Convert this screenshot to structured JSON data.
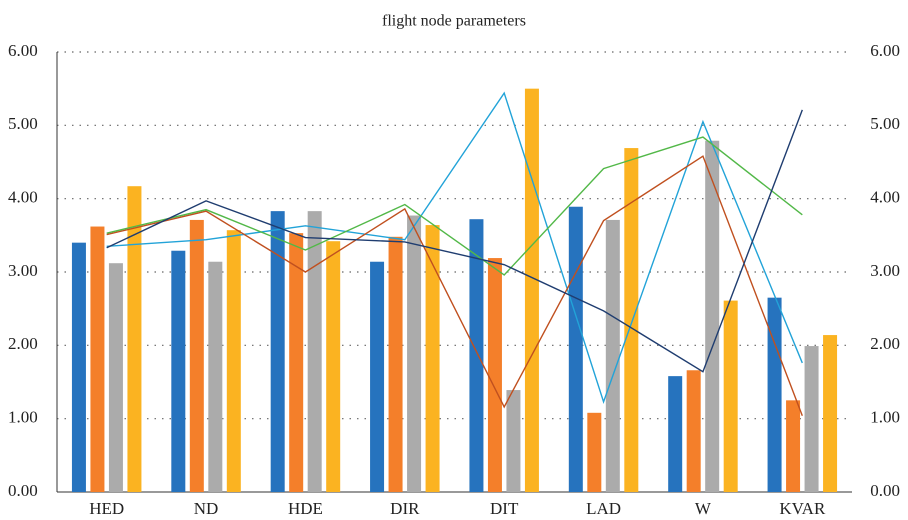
{
  "chart_data": {
    "type": "bar-line",
    "title": "flight node parameters",
    "categories": [
      "HED",
      "ND",
      "HDE",
      "DIR",
      "DIT",
      "LAD",
      "W",
      "KVAR"
    ],
    "series": [
      {
        "type": "bar",
        "color": "#2673be",
        "values": [
          3.4,
          3.29,
          3.83,
          3.14,
          3.72,
          3.89,
          1.58,
          2.65
        ]
      },
      {
        "type": "bar",
        "color": "#f47f2a",
        "values": [
          3.62,
          3.71,
          3.53,
          3.48,
          3.19,
          1.08,
          1.66,
          1.25
        ]
      },
      {
        "type": "bar",
        "color": "#ababab",
        "values": [
          3.12,
          3.14,
          3.83,
          3.77,
          1.39,
          3.71,
          4.79,
          1.99
        ]
      },
      {
        "type": "bar",
        "color": "#fbb321",
        "values": [
          4.17,
          3.57,
          3.42,
          3.64,
          5.5,
          4.69,
          2.61,
          2.14
        ]
      },
      {
        "type": "line",
        "axis": "y2",
        "color": "#22a3d8",
        "values": [
          3.35,
          3.44,
          3.63,
          3.44,
          5.44,
          1.23,
          5.05,
          1.76
        ]
      },
      {
        "type": "line",
        "axis": "y2",
        "color": "#c0501f",
        "values": [
          3.51,
          3.83,
          3.0,
          3.86,
          1.16,
          3.7,
          4.58,
          1.04
        ]
      },
      {
        "type": "line",
        "axis": "y2",
        "color": "#52b848",
        "values": [
          3.53,
          3.85,
          3.3,
          3.92,
          2.96,
          4.41,
          4.84,
          3.78
        ]
      },
      {
        "type": "line",
        "axis": "y2",
        "color": "#1f3d70",
        "values": [
          3.33,
          3.97,
          3.47,
          3.41,
          3.1,
          2.47,
          1.64,
          5.21
        ]
      }
    ],
    "ylim": [
      0,
      6
    ],
    "yticks": [
      {
        "value": 0,
        "label": "0.00"
      },
      {
        "value": 1,
        "label": "1.00"
      },
      {
        "value": 2,
        "label": "2.00"
      },
      {
        "value": 3,
        "label": "3.00"
      },
      {
        "value": 4,
        "label": "4.00"
      },
      {
        "value": 5,
        "label": "5.00"
      },
      {
        "value": 6,
        "label": "6.00"
      }
    ],
    "y2lim": [
      0,
      6
    ],
    "y2ticks": [
      {
        "value": 0,
        "label": "0.00"
      },
      {
        "value": 1,
        "label": "1.00"
      },
      {
        "value": 2,
        "label": "2.00"
      },
      {
        "value": 3,
        "label": "3.00"
      },
      {
        "value": 4,
        "label": "4.00"
      },
      {
        "value": 5,
        "label": "5.00"
      },
      {
        "value": 6,
        "label": "6.00"
      }
    ],
    "grid": true
  }
}
